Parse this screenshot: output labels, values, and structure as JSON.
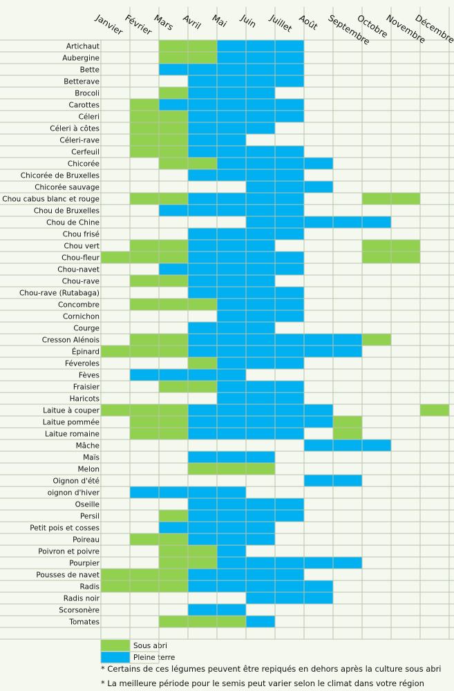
{
  "chart_data": {
    "type": "table",
    "title": "",
    "months": [
      "Janvier",
      "Février",
      "Mars",
      "Avril",
      "Mai",
      "Juin",
      "Juillet",
      "Août",
      "Septembre",
      "Octobre",
      "Novembre",
      "Décembre"
    ],
    "legend": [
      {
        "key": "S",
        "label": "Sous abri",
        "color": "#92d050"
      },
      {
        "key": "P",
        "label": "Pleine terre",
        "color": "#00b0f0"
      }
    ],
    "rows": [
      {
        "name": "Artichaut",
        "months": "..SSPPP....."
      },
      {
        "name": "Aubergine",
        "months": "..SSPPP....."
      },
      {
        "name": "Bette",
        "months": "..PPPPP....."
      },
      {
        "name": "Betterave",
        "months": "...PPPP....."
      },
      {
        "name": "Brocoli",
        "months": "..SPPP......"
      },
      {
        "name": "Carottes",
        "months": ".SPPPPP....."
      },
      {
        "name": "Céleri",
        "months": ".SSPPPP....."
      },
      {
        "name": "Céleri à côtes",
        "months": ".SSPPP......"
      },
      {
        "name": "Céleri-rave",
        "months": ".SSPP......."
      },
      {
        "name": "Cerfeuil",
        "months": ".SSPPPP....."
      },
      {
        "name": "Chicorée",
        "months": "..SSPPPP...."
      },
      {
        "name": "Chicorée de Bruxelles",
        "months": "...PPPP....."
      },
      {
        "name": "Chicorée sauvage",
        "months": ".....PPP...."
      },
      {
        "name": "Chou cabus blanc et rouge",
        "months": ".SSPPPP..SS."
      },
      {
        "name": "Chou de Bruxelles",
        "months": "..PPPPP....."
      },
      {
        "name": "Chou de Chine",
        "months": ".....PPPPP.."
      },
      {
        "name": "Chou frisé",
        "months": "...PPPP....."
      },
      {
        "name": "Chou vert",
        "months": ".SSPPP...SS."
      },
      {
        "name": "Chou-fleur",
        "months": "SSSPPPP..SS."
      },
      {
        "name": "Chou-navet",
        "months": "..PPPPP....."
      },
      {
        "name": "Chou-rave",
        "months": ".SSPPP......"
      },
      {
        "name": "Chou-rave (Rutabaga)",
        "months": "...PPPP....."
      },
      {
        "name": "Concombre",
        "months": ".SSSPPP....."
      },
      {
        "name": "Cornichon",
        "months": "....PPP....."
      },
      {
        "name": "Courge",
        "months": "...PPP......"
      },
      {
        "name": "Cresson Alénois",
        "months": ".SSPPPPPPS.."
      },
      {
        "name": "Épinard",
        "months": "SSSPPPPPP..."
      },
      {
        "name": "Féveroles",
        "months": "...SPPP....."
      },
      {
        "name": "Fèves",
        "months": ".PPPP......."
      },
      {
        "name": "Fraisier",
        "months": "..SSPPP....."
      },
      {
        "name": "Haricots",
        "months": "....PPP....."
      },
      {
        "name": "Laitue à couper",
        "months": "SSSPPPPP...S"
      },
      {
        "name": "Laitue pommée",
        "months": ".SSPPPPPS..."
      },
      {
        "name": "Laitue romaine",
        "months": ".SSPPPP.S..."
      },
      {
        "name": "Mâche",
        "months": ".......PPP.."
      },
      {
        "name": "Maïs",
        "months": "...PPP......"
      },
      {
        "name": "Melon",
        "months": "...SSS......"
      },
      {
        "name": "Oignon d'été",
        "months": ".......PP..."
      },
      {
        "name": "oignon d'hiver",
        "months": ".PPPP......."
      },
      {
        "name": "Oseille",
        "months": "...PPPP....."
      },
      {
        "name": "Persil",
        "months": "..SPPPP....."
      },
      {
        "name": "Petit pois et  cosses",
        "months": "..PPPP......"
      },
      {
        "name": "Poireau",
        "months": ".SSPPP......"
      },
      {
        "name": "Poivron et poivre",
        "months": "..SSP......."
      },
      {
        "name": "Pourpier",
        "months": "..SSPPPPP..."
      },
      {
        "name": "Pousses de navet",
        "months": "SSSPPPP....."
      },
      {
        "name": "Radis",
        "months": "SSSPPPPP...."
      },
      {
        "name": "Radis noir",
        "months": ".....PPP...."
      },
      {
        "name": "Scorsonère",
        "months": "...PP......."
      },
      {
        "name": "Tomates",
        "months": "..SSSP......"
      }
    ]
  },
  "notes": [
    "* Certains de ces légumes peuvent être repiqués en dehors après la culture sous abri",
    "* La meilleure période pour le semis peut varier selon le climat dans votre région"
  ]
}
